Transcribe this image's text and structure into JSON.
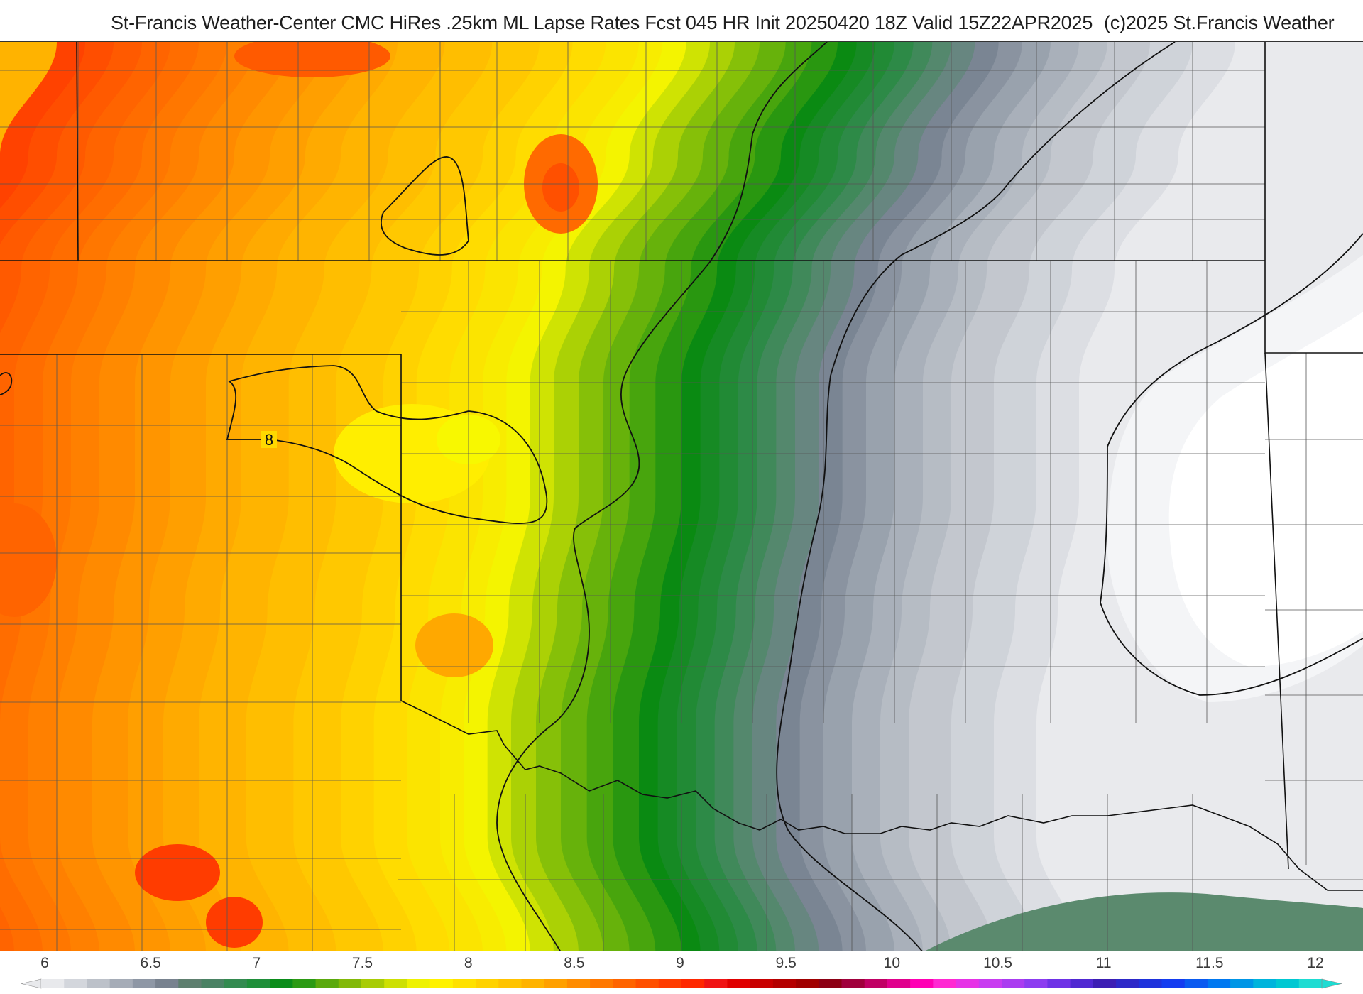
{
  "title": "St-Francis Weather-Center CMC HiRes .25km ML Lapse Rates  Fcst 045 HR Init 20250420 18Z  Valid 15Z22APR2025",
  "credit": "(c)2025 St.Francis Weather",
  "map": {
    "contour_label": "8",
    "contour_levels": [
      8,
      9,
      10,
      11
    ]
  },
  "legend": {
    "ticks": [
      "6",
      "6.5",
      "7",
      "7.5",
      "8",
      "8.5",
      "9",
      "9.5",
      "10",
      "10.5",
      "11",
      "11.5",
      "12"
    ],
    "colors": [
      "#e8e9ec",
      "#d3d6dc",
      "#bcc1c9",
      "#a5acb7",
      "#8e97a5",
      "#78828f",
      "#5e7f6f",
      "#4a8264",
      "#338a50",
      "#1f8f3a",
      "#0a8c1a",
      "#2b9a14",
      "#5aa90d",
      "#82b908",
      "#a8cc05",
      "#cde003",
      "#eef201",
      "#fff200",
      "#ffe100",
      "#ffd200",
      "#ffc300",
      "#ffb300",
      "#ffa000",
      "#ff8c00",
      "#ff7800",
      "#ff6400",
      "#ff5000",
      "#ff3c00",
      "#ff2800",
      "#f01414",
      "#e00000",
      "#c80000",
      "#b40000",
      "#a00000",
      "#8c0014",
      "#a0003c",
      "#c00064",
      "#e0008c",
      "#ff00b4",
      "#ff28d2",
      "#e632e6",
      "#c83cf0",
      "#aa3cf0",
      "#8c3cf0",
      "#6e32e6",
      "#5028d2",
      "#3c1eb4",
      "#2d28c8",
      "#1e32dc",
      "#143cf0",
      "#0a5af0",
      "#0078f0",
      "#0096e6",
      "#00b4dc",
      "#00c8d2",
      "#1edcd2"
    ],
    "cmap": [
      {
        "v": 6.0,
        "c": "#e9eaed"
      },
      {
        "v": 6.5,
        "c": "#a9b0ba"
      },
      {
        "v": 6.8,
        "c": "#7a8593"
      },
      {
        "v": 7.2,
        "c": "#2d8a47"
      },
      {
        "v": 7.5,
        "c": "#0a8a12"
      },
      {
        "v": 7.9,
        "c": "#86c008"
      },
      {
        "v": 8.2,
        "c": "#f4f400"
      },
      {
        "v": 8.5,
        "c": "#ffdc00"
      },
      {
        "v": 8.9,
        "c": "#ffb400"
      },
      {
        "v": 9.3,
        "c": "#ff8a00"
      },
      {
        "v": 9.8,
        "c": "#ff5a00"
      },
      {
        "v": 10.2,
        "c": "#ff2a00"
      }
    ]
  }
}
